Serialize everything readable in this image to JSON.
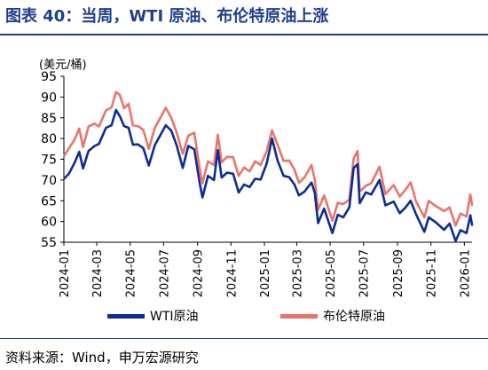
{
  "title": "图表 40：当周，WTI 原油、布伦特原油上涨",
  "source": "资料来源：Wind，申万宏源研究",
  "chart_data": {
    "type": "line",
    "ylabel": "(美元/桶)",
    "ylim": [
      55,
      95
    ],
    "yticks": [
      55,
      60,
      65,
      70,
      75,
      80,
      85,
      90,
      95
    ],
    "xlim": [
      "2024-01-01",
      "2026-01-15"
    ],
    "xticks": [
      "2024-01",
      "2024-03",
      "2024-05",
      "2024-07",
      "2024-09",
      "2024-11",
      "2025-01",
      "2025-03",
      "2025-05",
      "2025-07",
      "2025-09",
      "2025-11",
      "2026-01"
    ],
    "legend_position": "bottom",
    "series": [
      {
        "name": "WTI原油",
        "color": "#0d2c94",
        "points": [
          [
            "2024-01-02",
            70.4
          ],
          [
            "2024-01-10",
            71.5
          ],
          [
            "2024-01-20",
            74.0
          ],
          [
            "2024-01-29",
            76.8
          ],
          [
            "2024-02-05",
            72.8
          ],
          [
            "2024-02-15",
            77.0
          ],
          [
            "2024-02-26",
            78.2
          ],
          [
            "2024-03-05",
            78.7
          ],
          [
            "2024-03-18",
            82.6
          ],
          [
            "2024-03-28",
            83.2
          ],
          [
            "2024-04-05",
            86.9
          ],
          [
            "2024-04-12",
            85.4
          ],
          [
            "2024-04-20",
            83.0
          ],
          [
            "2024-04-28",
            82.6
          ],
          [
            "2024-05-06",
            78.5
          ],
          [
            "2024-05-15",
            78.6
          ],
          [
            "2024-05-25",
            77.7
          ],
          [
            "2024-06-04",
            73.5
          ],
          [
            "2024-06-15",
            78.4
          ],
          [
            "2024-06-25",
            80.8
          ],
          [
            "2024-07-05",
            83.2
          ],
          [
            "2024-07-15",
            81.9
          ],
          [
            "2024-07-25",
            78.3
          ],
          [
            "2024-08-05",
            72.9
          ],
          [
            "2024-08-15",
            78.2
          ],
          [
            "2024-08-26",
            77.4
          ],
          [
            "2024-09-05",
            69.2
          ],
          [
            "2024-09-10",
            65.8
          ],
          [
            "2024-09-20",
            71.0
          ],
          [
            "2024-10-01",
            70.0
          ],
          [
            "2024-10-08",
            77.2
          ],
          [
            "2024-10-15",
            70.6
          ],
          [
            "2024-10-25",
            71.8
          ],
          [
            "2024-11-05",
            71.5
          ],
          [
            "2024-11-15",
            67.0
          ],
          [
            "2024-11-25",
            68.9
          ],
          [
            "2024-12-05",
            68.3
          ],
          [
            "2024-12-15",
            70.3
          ],
          [
            "2024-12-25",
            70.1
          ],
          [
            "2025-01-05",
            73.9
          ],
          [
            "2025-01-15",
            80.0
          ],
          [
            "2025-01-25",
            74.7
          ],
          [
            "2025-02-05",
            71.0
          ],
          [
            "2025-02-15",
            70.7
          ],
          [
            "2025-02-25",
            68.9
          ],
          [
            "2025-03-05",
            66.3
          ],
          [
            "2025-03-15",
            67.2
          ],
          [
            "2025-03-28",
            69.4
          ],
          [
            "2025-04-03",
            66.9
          ],
          [
            "2025-04-09",
            59.6
          ],
          [
            "2025-04-20",
            63.1
          ],
          [
            "2025-05-05",
            57.2
          ],
          [
            "2025-05-15",
            61.6
          ],
          [
            "2025-05-25",
            61.0
          ],
          [
            "2025-06-05",
            63.4
          ],
          [
            "2025-06-13",
            72.9
          ],
          [
            "2025-06-20",
            73.8
          ],
          [
            "2025-06-24",
            64.4
          ],
          [
            "2025-07-05",
            67.0
          ],
          [
            "2025-07-15",
            66.5
          ],
          [
            "2025-07-30",
            70.0
          ],
          [
            "2025-08-10",
            63.9
          ],
          [
            "2025-08-25",
            64.8
          ],
          [
            "2025-09-05",
            62.0
          ],
          [
            "2025-09-15",
            63.3
          ],
          [
            "2025-09-25",
            65.0
          ],
          [
            "2025-10-05",
            61.7
          ],
          [
            "2025-10-20",
            57.5
          ],
          [
            "2025-10-28",
            61.0
          ],
          [
            "2025-11-10",
            59.8
          ],
          [
            "2025-11-25",
            58.0
          ],
          [
            "2025-12-05",
            59.5
          ],
          [
            "2025-12-16",
            55.3
          ],
          [
            "2025-12-25",
            57.9
          ],
          [
            "2026-01-05",
            57.2
          ],
          [
            "2026-01-12",
            61.5
          ],
          [
            "2026-01-15",
            59.2
          ]
        ]
      },
      {
        "name": "布伦特原油",
        "color": "#e8756b",
        "points": [
          [
            "2024-01-02",
            75.9
          ],
          [
            "2024-01-10",
            77.6
          ],
          [
            "2024-01-20",
            79.6
          ],
          [
            "2024-01-29",
            82.4
          ],
          [
            "2024-02-05",
            77.9
          ],
          [
            "2024-02-15",
            82.9
          ],
          [
            "2024-02-26",
            83.6
          ],
          [
            "2024-03-05",
            82.9
          ],
          [
            "2024-03-18",
            86.8
          ],
          [
            "2024-03-28",
            87.5
          ],
          [
            "2024-04-05",
            91.2
          ],
          [
            "2024-04-12",
            90.5
          ],
          [
            "2024-04-20",
            87.3
          ],
          [
            "2024-04-28",
            88.4
          ],
          [
            "2024-05-06",
            83.2
          ],
          [
            "2024-05-15",
            83.0
          ],
          [
            "2024-05-25",
            82.1
          ],
          [
            "2024-06-04",
            77.5
          ],
          [
            "2024-06-15",
            82.6
          ],
          [
            "2024-06-25",
            85.0
          ],
          [
            "2024-07-05",
            87.4
          ],
          [
            "2024-07-15",
            85.0
          ],
          [
            "2024-07-25",
            81.4
          ],
          [
            "2024-08-05",
            76.3
          ],
          [
            "2024-08-15",
            80.7
          ],
          [
            "2024-08-26",
            81.4
          ],
          [
            "2024-09-05",
            72.7
          ],
          [
            "2024-09-10",
            69.2
          ],
          [
            "2024-09-20",
            74.5
          ],
          [
            "2024-10-01",
            73.6
          ],
          [
            "2024-10-08",
            80.9
          ],
          [
            "2024-10-15",
            74.3
          ],
          [
            "2024-10-25",
            75.6
          ],
          [
            "2024-11-05",
            75.5
          ],
          [
            "2024-11-15",
            71.0
          ],
          [
            "2024-11-25",
            73.0
          ],
          [
            "2024-12-05",
            72.1
          ],
          [
            "2024-12-15",
            74.5
          ],
          [
            "2024-12-25",
            73.6
          ],
          [
            "2025-01-05",
            76.9
          ],
          [
            "2025-01-15",
            82.0
          ],
          [
            "2025-01-25",
            78.5
          ],
          [
            "2025-02-05",
            74.6
          ],
          [
            "2025-02-15",
            74.7
          ],
          [
            "2025-02-25",
            72.5
          ],
          [
            "2025-03-05",
            69.3
          ],
          [
            "2025-03-15",
            70.6
          ],
          [
            "2025-03-28",
            73.6
          ],
          [
            "2025-04-03",
            70.0
          ],
          [
            "2025-04-09",
            62.8
          ],
          [
            "2025-04-20",
            66.3
          ],
          [
            "2025-05-05",
            60.2
          ],
          [
            "2025-05-15",
            64.5
          ],
          [
            "2025-05-25",
            64.2
          ],
          [
            "2025-06-05",
            65.3
          ],
          [
            "2025-06-13",
            75.2
          ],
          [
            "2025-06-20",
            77.0
          ],
          [
            "2025-06-24",
            67.2
          ],
          [
            "2025-07-05",
            68.6
          ],
          [
            "2025-07-15",
            69.2
          ],
          [
            "2025-07-30",
            73.2
          ],
          [
            "2025-08-10",
            66.6
          ],
          [
            "2025-08-25",
            68.8
          ],
          [
            "2025-09-05",
            66.0
          ],
          [
            "2025-09-15",
            67.6
          ],
          [
            "2025-09-25",
            69.4
          ],
          [
            "2025-10-05",
            64.8
          ],
          [
            "2025-10-20",
            61.0
          ],
          [
            "2025-10-28",
            65.0
          ],
          [
            "2025-11-10",
            63.7
          ],
          [
            "2025-11-25",
            62.5
          ],
          [
            "2025-12-05",
            63.4
          ],
          [
            "2025-12-16",
            59.0
          ],
          [
            "2025-12-25",
            61.9
          ],
          [
            "2026-01-05",
            61.2
          ],
          [
            "2026-01-12",
            66.5
          ],
          [
            "2026-01-15",
            64.0
          ]
        ]
      }
    ]
  }
}
